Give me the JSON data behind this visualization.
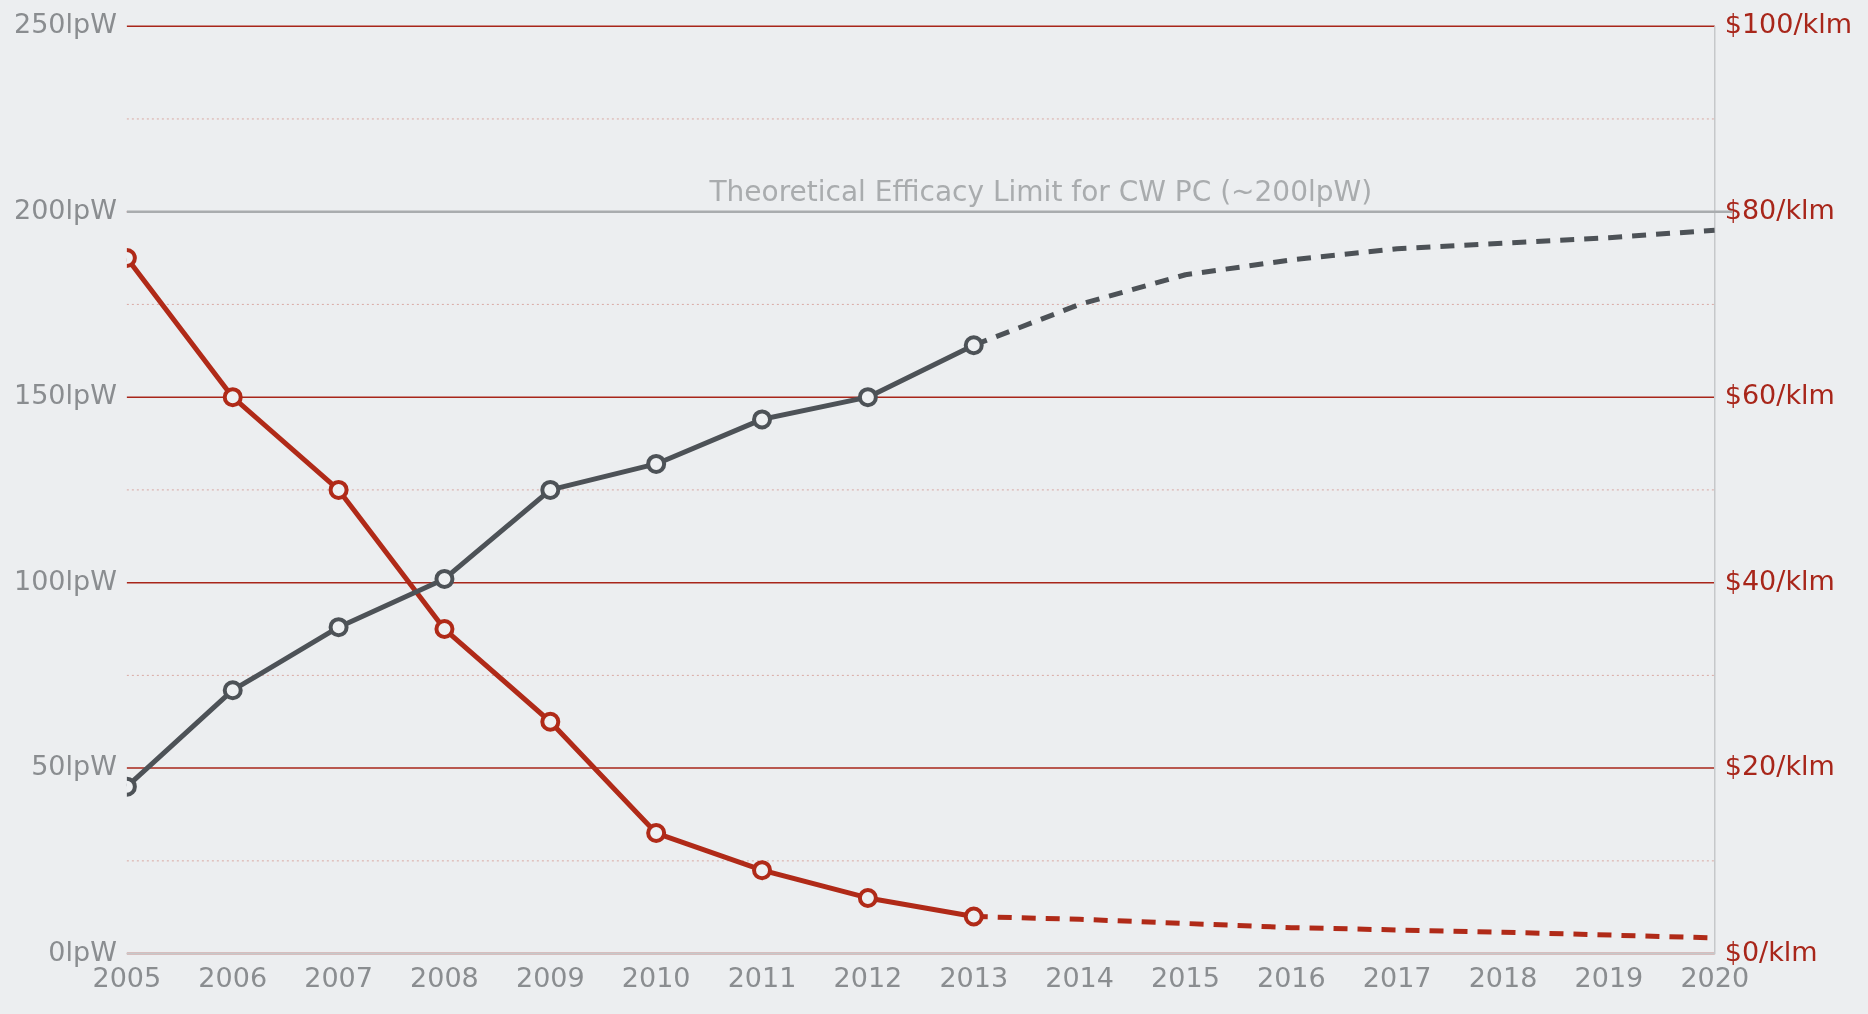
{
  "chart_data": {
    "type": "line",
    "xlim": [
      2005,
      2020
    ],
    "xticks": [
      2005,
      2006,
      2007,
      2008,
      2009,
      2010,
      2011,
      2012,
      2013,
      2014,
      2015,
      2016,
      2017,
      2018,
      2019,
      2020
    ],
    "ylim": [
      0,
      250
    ],
    "yticks": [
      {
        "value": 0,
        "label": "0lpW"
      },
      {
        "value": 25,
        "label": null
      },
      {
        "value": 50,
        "label": "50lpW"
      },
      {
        "value": 75,
        "label": null
      },
      {
        "value": 100,
        "label": "100lpW"
      },
      {
        "value": 125,
        "label": null
      },
      {
        "value": 150,
        "label": "150lpW"
      },
      {
        "value": 175,
        "label": null
      },
      {
        "value": 200,
        "label": "200lpW"
      },
      {
        "value": 225,
        "label": null
      },
      {
        "value": 250,
        "label": "250lpW"
      }
    ],
    "y2lim": [
      0,
      100
    ],
    "y2ticks": [
      {
        "value": 0,
        "label": "$0/klm"
      },
      {
        "value": 20,
        "label": "$20/klm"
      },
      {
        "value": 40,
        "label": "$40/klm"
      },
      {
        "value": 60,
        "label": "$60/klm"
      },
      {
        "value": 80,
        "label": "$80/klm"
      },
      {
        "value": 100,
        "label": "$100/klm"
      }
    ],
    "grid": "y",
    "legend": false,
    "series": [
      {
        "color": "#4d5257",
        "marker": "circle",
        "line_style": "solid",
        "x": [
          2005,
          2006,
          2007,
          2008,
          2009,
          2010,
          2011,
          2012,
          2013
        ],
        "values": [
          45,
          71,
          88,
          101,
          125,
          132,
          144,
          150,
          164
        ]
      },
      {
        "color": "#4d5257",
        "marker": "none",
        "line_style": "dashed",
        "x": [
          2013,
          2014,
          2015,
          2016,
          2017,
          2018,
          2019,
          2020
        ],
        "values": [
          164,
          175,
          183,
          187,
          190,
          191.5,
          193,
          195
        ]
      },
      {
        "color": "#b02a18",
        "marker": "circle",
        "line_style": "solid",
        "axis": "y2",
        "x": [
          2005,
          2006,
          2007,
          2008,
          2009,
          2010,
          2011,
          2012,
          2013
        ],
        "values": [
          75,
          60,
          50,
          35,
          25,
          13,
          9,
          6,
          4
        ]
      },
      {
        "color": "#b02a18",
        "marker": "none",
        "line_style": "dashed",
        "axis": "y2",
        "x": [
          2013,
          2014,
          2016,
          2018,
          2020
        ],
        "values": [
          4,
          3.7,
          2.8,
          2.3,
          1.7
        ]
      }
    ],
    "ref_lines": [
      {
        "axis": "y",
        "value": 200,
        "label": "Theoretical Efficacy Limit for CW PC (~200lpW)",
        "color": "#a9acae"
      }
    ]
  }
}
